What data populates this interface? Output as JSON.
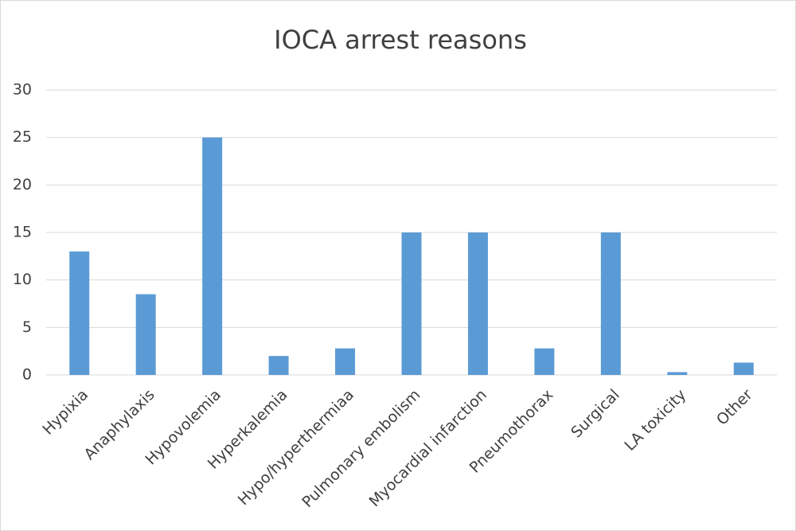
{
  "chart_data": {
    "type": "bar",
    "title": "IOCA arrest reasons",
    "categories": [
      "Hypixia",
      "Anaphylaxis",
      "Hypovolemia",
      "Hyperkalemia",
      "Hypo/hyperthermiaa",
      "Pulmonary embolism",
      "Myocardial infarction",
      "Pneumothorax",
      "Surgical",
      "LA toxicity",
      "Other"
    ],
    "values": [
      13,
      8.5,
      25,
      2,
      2.8,
      15,
      15,
      2.8,
      15,
      0.3,
      1.3
    ],
    "color": "#5b9bd5",
    "ylim": [
      0,
      30
    ],
    "yticks": [
      0,
      5,
      10,
      15,
      20,
      25,
      30
    ],
    "grid": true
  }
}
